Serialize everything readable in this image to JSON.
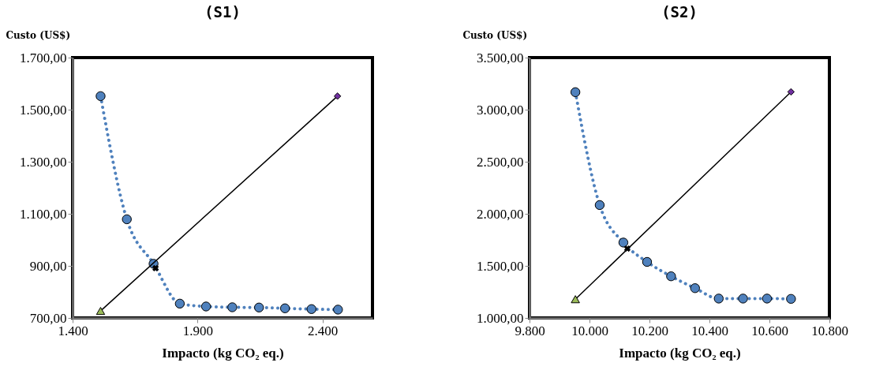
{
  "chart_data": [
    {
      "type": "line",
      "title": "(S1)",
      "xlabel": "Impacto (kg CO₂ eq.)",
      "ylabel": "Custo (US$)",
      "xlim": [
        1400,
        2600
      ],
      "ylim": [
        700,
        1700
      ],
      "xticks": [
        {
          "value": 1400,
          "label": "1.400"
        },
        {
          "value": 1900,
          "label": "1.900"
        },
        {
          "value": 2400,
          "label": "2.400"
        }
      ],
      "yticks": [
        {
          "value": 700,
          "label": "700,00"
        },
        {
          "value": 900,
          "label": "900,00"
        },
        {
          "value": 1100,
          "label": "1.100,00"
        },
        {
          "value": 1300,
          "label": "1.300,00"
        },
        {
          "value": 1500,
          "label": "1.500,00"
        },
        {
          "value": 1700,
          "label": "1.700,00"
        }
      ],
      "grid": false,
      "series": [
        {
          "color": "#4f81bd",
          "marker": "circle",
          "line_style": "dotted",
          "x": [
            1512,
            1617,
            1724,
            1829,
            1934,
            2039,
            2146,
            2250,
            2356,
            2462
          ],
          "values": [
            1552,
            1079,
            908,
            755,
            744,
            741,
            740,
            737,
            734,
            732
          ]
        },
        {
          "color": "#000000",
          "marker": "none",
          "line_style": "solid",
          "x": [
            1512,
            2460
          ],
          "values": [
            727,
            1552
          ]
        },
        {
          "type": "scatter",
          "color": "#9bbb59",
          "marker": "triangle",
          "x": [
            1512
          ],
          "values": [
            727
          ]
        },
        {
          "type": "scatter",
          "color": "#7030a0",
          "marker": "diamond",
          "x": [
            2460
          ],
          "values": [
            1552
          ]
        },
        {
          "type": "scatter",
          "color": "#000000",
          "marker": "cross",
          "x": [
            1732
          ],
          "values": [
            891
          ]
        }
      ]
    },
    {
      "type": "line",
      "title": "(S2)",
      "xlabel": "Impacto (kg CO₂ eq.)",
      "ylabel": "Custo (US$)",
      "xlim": [
        9800,
        10800
      ],
      "ylim": [
        1000,
        3500
      ],
      "xticks": [
        {
          "value": 9800,
          "label": "9.800"
        },
        {
          "value": 10000,
          "label": "10.000"
        },
        {
          "value": 10200,
          "label": "10.200"
        },
        {
          "value": 10400,
          "label": "10.400"
        },
        {
          "value": 10600,
          "label": "10.600"
        },
        {
          "value": 10800,
          "label": "10.800"
        }
      ],
      "yticks": [
        {
          "value": 1000,
          "label": "1.000,00"
        },
        {
          "value": 1500,
          "label": "1.500,00"
        },
        {
          "value": 2000,
          "label": "2.000,00"
        },
        {
          "value": 2500,
          "label": "2.500,00"
        },
        {
          "value": 3000,
          "label": "3.000,00"
        },
        {
          "value": 3500,
          "label": "3.500,00"
        }
      ],
      "grid": false,
      "series": [
        {
          "color": "#4f81bd",
          "marker": "circle",
          "line_style": "dotted",
          "x": [
            9953,
            10034,
            10113,
            10192,
            10272,
            10352,
            10431,
            10512,
            10592,
            10672
          ],
          "values": [
            3168,
            2084,
            1724,
            1538,
            1400,
            1286,
            1186,
            1186,
            1186,
            1183
          ]
        },
        {
          "color": "#000000",
          "marker": "none",
          "line_style": "solid",
          "x": [
            9953,
            10672
          ],
          "values": [
            1180,
            3171
          ]
        },
        {
          "type": "scatter",
          "color": "#9bbb59",
          "marker": "triangle",
          "x": [
            9953
          ],
          "values": [
            1180
          ]
        },
        {
          "type": "scatter",
          "color": "#7030a0",
          "marker": "diamond",
          "x": [
            10672
          ],
          "values": [
            3171
          ]
        },
        {
          "type": "scatter",
          "color": "#000000",
          "marker": "cross",
          "x": [
            10126
          ],
          "values": [
            1666
          ]
        }
      ]
    }
  ]
}
